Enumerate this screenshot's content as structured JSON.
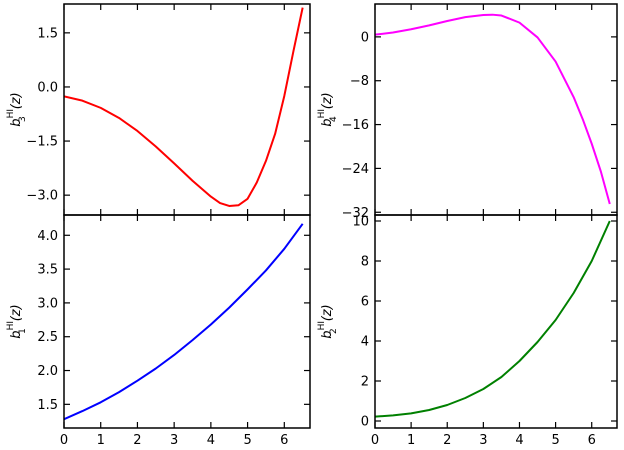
{
  "figure": {
    "background": "#ffffff"
  },
  "chart_data": [
    {
      "id": "b3",
      "type": "line",
      "title": "",
      "xlabel": "",
      "ylabel": {
        "base": "b",
        "sub": "3",
        "sup": "HI",
        "arg": "(z)"
      },
      "xlim": [
        0,
        6.7
      ],
      "ylim": [
        -3.55,
        2.3
      ],
      "yticks": [
        1.5,
        0.0,
        -1.5,
        -3.0
      ],
      "ytick_labels": [
        "1.5",
        "0.0",
        "−1.5",
        "−3.0"
      ],
      "xticks": [
        0,
        1,
        2,
        3,
        4,
        5,
        6
      ],
      "xtick_labels": [],
      "grid": false,
      "series": [
        {
          "color": "#ff0000",
          "x": [
            0,
            0.5,
            1.0,
            1.5,
            2.0,
            2.5,
            3.0,
            3.5,
            4.0,
            4.25,
            4.5,
            4.75,
            5.0,
            5.25,
            5.5,
            5.75,
            6.0,
            6.25,
            6.5
          ],
          "y": [
            -0.26,
            -0.38,
            -0.58,
            -0.86,
            -1.22,
            -1.65,
            -2.12,
            -2.6,
            -3.04,
            -3.22,
            -3.3,
            -3.28,
            -3.1,
            -2.65,
            -2.05,
            -1.3,
            -0.25,
            1.0,
            2.2
          ]
        }
      ]
    },
    {
      "id": "b4",
      "type": "line",
      "title": "",
      "xlabel": "",
      "ylabel": {
        "base": "b",
        "sub": "4",
        "sup": "HI",
        "arg": "(z)"
      },
      "xlim": [
        0,
        6.7
      ],
      "ylim": [
        -32.5,
        6.0
      ],
      "yticks": [
        0,
        -8,
        -16,
        -24,
        -32
      ],
      "ytick_labels": [
        "0",
        "−8",
        "−16",
        "−24",
        "−32"
      ],
      "xticks": [
        0,
        1,
        2,
        3,
        4,
        5,
        6
      ],
      "xtick_labels": [],
      "grid": false,
      "series": [
        {
          "color": "#ff00ff",
          "x": [
            0,
            0.5,
            1.0,
            1.5,
            2.0,
            2.5,
            3.0,
            3.25,
            3.5,
            4.0,
            4.5,
            5.0,
            5.5,
            5.75,
            6.0,
            6.25,
            6.5
          ],
          "y": [
            0.4,
            0.8,
            1.4,
            2.1,
            2.9,
            3.6,
            4.0,
            4.05,
            3.9,
            2.6,
            -0.1,
            -4.5,
            -11.0,
            -15.0,
            -19.5,
            -24.5,
            -30.5
          ]
        }
      ]
    },
    {
      "id": "b1",
      "type": "line",
      "title": "",
      "xlabel": "",
      "ylabel": {
        "base": "b",
        "sub": "1",
        "sup": "HI",
        "arg": "(z)"
      },
      "xlim": [
        0,
        6.7
      ],
      "ylim": [
        1.15,
        4.3
      ],
      "yticks": [
        1.5,
        2.0,
        2.5,
        3.0,
        3.5,
        4.0
      ],
      "ytick_labels": [
        "1.5",
        "2.0",
        "2.5",
        "3.0",
        "3.5",
        "4.0"
      ],
      "xticks": [
        0,
        1,
        2,
        3,
        4,
        5,
        6
      ],
      "xtick_labels": [
        "0",
        "1",
        "2",
        "3",
        "4",
        "5",
        "6"
      ],
      "grid": false,
      "series": [
        {
          "color": "#0000ff",
          "x": [
            0,
            0.5,
            1.0,
            1.5,
            2.0,
            2.5,
            3.0,
            3.5,
            4.0,
            4.5,
            5.0,
            5.5,
            6.0,
            6.5
          ],
          "y": [
            1.28,
            1.4,
            1.53,
            1.68,
            1.85,
            2.03,
            2.23,
            2.45,
            2.68,
            2.93,
            3.2,
            3.48,
            3.8,
            4.17
          ]
        }
      ]
    },
    {
      "id": "b2",
      "type": "line",
      "title": "",
      "xlabel": "",
      "ylabel": {
        "base": "b",
        "sub": "2",
        "sup": "HI",
        "arg": "(z)"
      },
      "xlim": [
        0,
        6.7
      ],
      "ylim": [
        -0.35,
        10.3
      ],
      "yticks": [
        0,
        2,
        4,
        6,
        8,
        10
      ],
      "ytick_labels": [
        "0",
        "2",
        "4",
        "6",
        "8",
        "10"
      ],
      "xticks": [
        0,
        1,
        2,
        3,
        4,
        5,
        6
      ],
      "xtick_labels": [
        "0",
        "1",
        "2",
        "3",
        "4",
        "5",
        "6"
      ],
      "grid": false,
      "series": [
        {
          "color": "#008000",
          "x": [
            0,
            0.5,
            1.0,
            1.5,
            2.0,
            2.5,
            3.0,
            3.5,
            4.0,
            4.5,
            5.0,
            5.5,
            6.0,
            6.5
          ],
          "y": [
            0.22,
            0.28,
            0.38,
            0.55,
            0.8,
            1.15,
            1.6,
            2.2,
            3.0,
            3.95,
            5.05,
            6.4,
            8.0,
            10.0
          ]
        }
      ]
    }
  ]
}
